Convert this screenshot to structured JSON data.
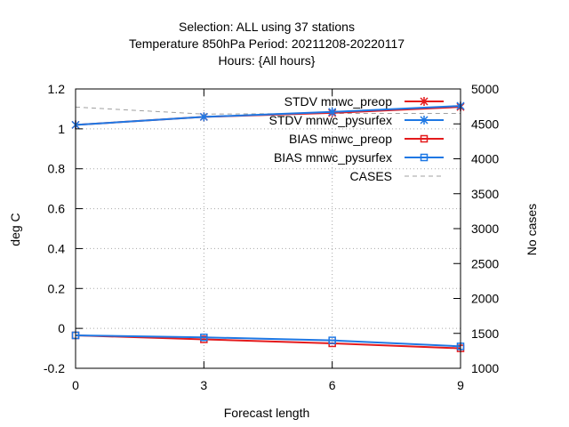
{
  "chart_data": {
    "type": "line",
    "title_lines": [
      "Selection: ALL using    37 stations",
      "Temperature 850hPa   Period: 20211208-20220117",
      "Hours: {All hours}"
    ],
    "xlabel": "Forecast length",
    "ylabel": "deg C",
    "y2label": "No cases",
    "x": [
      0,
      3,
      6,
      9
    ],
    "xticks": [
      "0",
      "3",
      "6",
      "9"
    ],
    "xlim": [
      0,
      9
    ],
    "ylim": [
      -0.2,
      1.2
    ],
    "yticks": [
      "-0.2",
      "0",
      "0.2",
      "0.4",
      "0.6",
      "0.8",
      "1",
      "1.2"
    ],
    "y2lim": [
      1000,
      5000
    ],
    "y2ticks": [
      "1000",
      "1500",
      "2000",
      "2500",
      "3000",
      "3500",
      "4000",
      "4500",
      "5000"
    ],
    "grid": true,
    "legend_position": "top-right",
    "series": [
      {
        "name": "STDV mnwc_preop",
        "axis": "y",
        "color": "#e41a1c",
        "marker": "x-star",
        "dash": "solid",
        "values": [
          1.02,
          1.06,
          1.08,
          1.11
        ]
      },
      {
        "name": "STDV mnwc_pysurfex",
        "axis": "y",
        "color": "#1f78e4",
        "marker": "x-star",
        "dash": "solid",
        "values": [
          1.02,
          1.06,
          1.085,
          1.115
        ]
      },
      {
        "name": "BIAS mnwc_preop",
        "axis": "y",
        "color": "#e41a1c",
        "marker": "square",
        "dash": "solid",
        "values": [
          -0.035,
          -0.055,
          -0.075,
          -0.1
        ]
      },
      {
        "name": "BIAS mnwc_pysurfex",
        "axis": "y",
        "color": "#1f78e4",
        "marker": "square",
        "dash": "solid",
        "values": [
          -0.035,
          -0.045,
          -0.06,
          -0.09
        ]
      },
      {
        "name": "CASES",
        "axis": "y2",
        "color": "#a0a0a0",
        "marker": "none",
        "dash": "dashed",
        "values": [
          4740,
          4640,
          4650,
          4650
        ]
      }
    ]
  }
}
